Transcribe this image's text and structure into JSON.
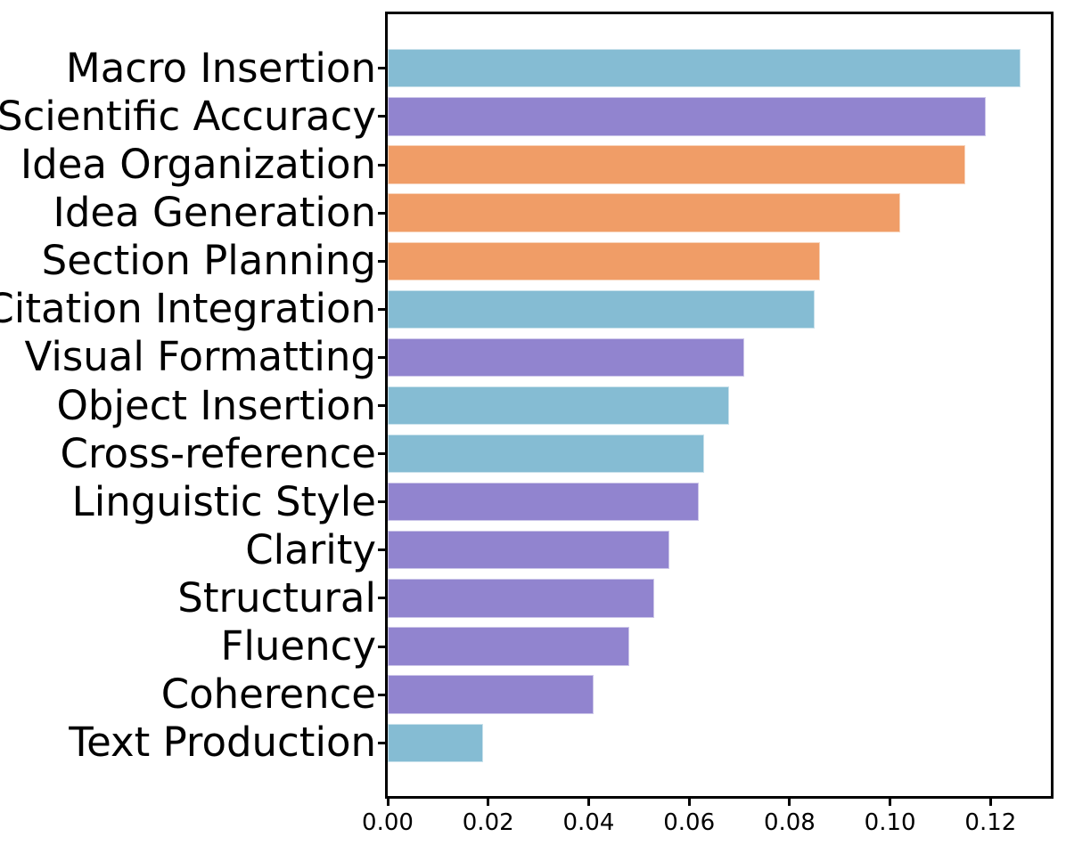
{
  "chart_data": {
    "type": "bar",
    "orientation": "horizontal",
    "title": "",
    "xlabel": "",
    "ylabel": "",
    "grid": false,
    "legend": null,
    "xlim": [
      0,
      0.132
    ],
    "x_ticks": [
      {
        "value": 0.0,
        "label": "0.00"
      },
      {
        "value": 0.02,
        "label": "0.02"
      },
      {
        "value": 0.04,
        "label": "0.04"
      },
      {
        "value": 0.06,
        "label": "0.06"
      },
      {
        "value": 0.08,
        "label": "0.08"
      },
      {
        "value": 0.1,
        "label": "0.10"
      },
      {
        "value": 0.12,
        "label": "0.12"
      }
    ],
    "categories": [
      "Macro Insertion",
      "Scientific Accuracy",
      "Idea Organization",
      "Idea Generation",
      "Section Planning",
      "Citation Integration",
      "Visual Formatting",
      "Object Insertion",
      "Cross-reference",
      "Linguistic Style",
      "Clarity",
      "Structural",
      "Fluency",
      "Coherence",
      "Text Production"
    ],
    "values": [
      0.126,
      0.119,
      0.115,
      0.102,
      0.086,
      0.085,
      0.071,
      0.068,
      0.063,
      0.062,
      0.056,
      0.053,
      0.048,
      0.041,
      0.019
    ],
    "bar_color_groups": [
      "teal",
      "purple",
      "orange",
      "orange",
      "orange",
      "teal",
      "purple",
      "teal",
      "teal",
      "purple",
      "purple",
      "purple",
      "purple",
      "purple",
      "teal"
    ],
    "palette": {
      "teal": "#85BCD3",
      "purple": "#9184CF",
      "orange": "#F09D67"
    },
    "axis_color": "#000000",
    "background_color": "#ffffff",
    "note_labels_clipped_at_left_edge": [
      "Scientific Accuracy",
      "Idea Organization",
      "Citation Integration",
      "Visual Formatting"
    ]
  }
}
